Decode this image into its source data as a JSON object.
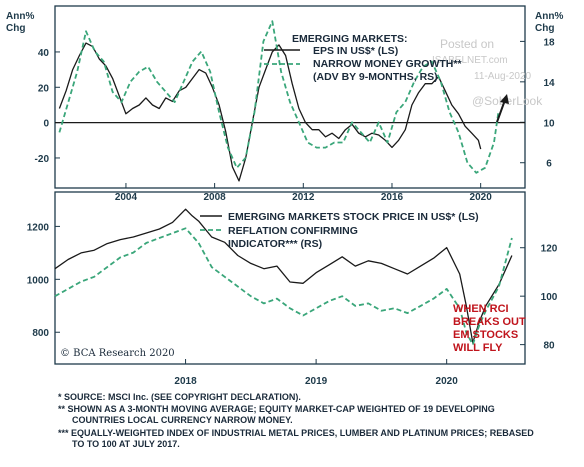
{
  "colors": {
    "black_line": "#1a1a1a",
    "green_dashed": "#3aa67a",
    "red_text": "#c0141c",
    "frame": "#1e3a4a"
  },
  "chart_data": [
    {
      "type": "line",
      "title": "EMERGING MARKETS:",
      "left_unit": [
        "Ann%",
        "Chg"
      ],
      "right_unit": [
        "Ann%",
        "Chg"
      ],
      "left_ticks": [
        "40",
        "20",
        "0",
        "-20"
      ],
      "right_ticks": [
        "18",
        "14",
        "10",
        "6"
      ],
      "x_ticks": [
        "2004",
        "2008",
        "2012",
        "2016",
        "2020"
      ],
      "xlim": [
        2000.8,
        2022.0
      ],
      "ylim_left": [
        -37,
        66
      ],
      "ylim_right": [
        3.5,
        21.5
      ],
      "zero_line": 0,
      "series": [
        {
          "name": "EPS IN US$* (LS)",
          "axis": "left",
          "style": "solid",
          "x": [
            2001.0,
            2001.3,
            2001.6,
            2001.9,
            2002.2,
            2002.5,
            2002.8,
            2003.1,
            2003.4,
            2003.7,
            2004.0,
            2004.3,
            2004.6,
            2004.9,
            2005.2,
            2005.5,
            2005.8,
            2006.1,
            2006.4,
            2006.7,
            2007.0,
            2007.3,
            2007.6,
            2007.9,
            2008.2,
            2008.5,
            2008.8,
            2009.1,
            2009.4,
            2009.7,
            2010.0,
            2010.3,
            2010.6,
            2010.9,
            2011.2,
            2011.5,
            2011.8,
            2012.1,
            2012.4,
            2012.7,
            2013.0,
            2013.3,
            2013.6,
            2013.9,
            2014.2,
            2014.5,
            2014.8,
            2015.1,
            2015.4,
            2015.7,
            2016.0,
            2016.3,
            2016.6,
            2016.9,
            2017.2,
            2017.5,
            2017.8,
            2018.1,
            2018.4,
            2018.7,
            2019.0,
            2019.3,
            2019.6,
            2019.9,
            2020.0
          ],
          "values": [
            8,
            18,
            30,
            38,
            45,
            43,
            36,
            32,
            25,
            15,
            5,
            8,
            10,
            14,
            10,
            8,
            14,
            12,
            18,
            20,
            25,
            30,
            28,
            20,
            10,
            -5,
            -25,
            -33,
            -20,
            0,
            20,
            30,
            40,
            44,
            38,
            22,
            8,
            0,
            -4,
            -4,
            -8,
            -6,
            -9,
            -4,
            -1,
            -6,
            -8,
            -6,
            -7,
            -10,
            -14,
            -10,
            -4,
            10,
            17,
            22,
            22,
            26,
            18,
            10,
            5,
            -2,
            -6,
            -10,
            -15
          ]
        },
        {
          "name": "NARROW MONEY GROWTH** (ADV BY 9-MONTHS, RS)",
          "axis": "right",
          "style": "dashed",
          "x": [
            2001.0,
            2001.4,
            2001.8,
            2002.2,
            2002.6,
            2003.0,
            2003.4,
            2003.8,
            2004.2,
            2004.6,
            2005.0,
            2005.4,
            2005.8,
            2006.2,
            2006.6,
            2007.0,
            2007.4,
            2007.8,
            2008.2,
            2008.6,
            2009.0,
            2009.4,
            2009.8,
            2010.2,
            2010.6,
            2011.0,
            2011.4,
            2011.8,
            2012.2,
            2012.6,
            2013.0,
            2013.4,
            2013.8,
            2014.2,
            2014.6,
            2015.0,
            2015.4,
            2015.8,
            2016.2,
            2016.6,
            2017.0,
            2017.4,
            2017.8,
            2018.2,
            2018.6,
            2019.0,
            2019.4,
            2019.8,
            2020.2,
            2020.6,
            2020.8
          ],
          "values": [
            9,
            12,
            15,
            19,
            17,
            16,
            13,
            12,
            14,
            15,
            15.5,
            14,
            13,
            12,
            14,
            16,
            17,
            15,
            11,
            7.5,
            5.5,
            6.5,
            11,
            18,
            20,
            15,
            12,
            10,
            8,
            7.5,
            7.5,
            8,
            8,
            10,
            9,
            8,
            10,
            8,
            11,
            12,
            14,
            15.5,
            16,
            14,
            11,
            9,
            6,
            5,
            5.5,
            8,
            11
          ]
        }
      ]
    },
    {
      "type": "line",
      "x_ticks": [
        "2018",
        "2019",
        "2020"
      ],
      "xlim": [
        2017.0,
        2020.6
      ],
      "left_ticks": [
        "1200",
        "1000",
        "800"
      ],
      "right_ticks": [
        "120",
        "100",
        "80"
      ],
      "ylim_left": [
        680,
        1330
      ],
      "ylim_right": [
        72,
        143
      ],
      "series": [
        {
          "name": "EMERGING MARKETS STOCK PRICE IN US$* (LS)",
          "axis": "left",
          "style": "solid",
          "x": [
            2017.0,
            2017.1,
            2017.2,
            2017.3,
            2017.4,
            2017.5,
            2017.6,
            2017.7,
            2017.8,
            2017.9,
            2018.0,
            2018.05,
            2018.1,
            2018.2,
            2018.3,
            2018.4,
            2018.5,
            2018.6,
            2018.7,
            2018.8,
            2018.9,
            2019.0,
            2019.1,
            2019.2,
            2019.3,
            2019.4,
            2019.5,
            2019.6,
            2019.7,
            2019.8,
            2019.9,
            2020.0,
            2020.1,
            2020.15,
            2020.2,
            2020.25,
            2020.3,
            2020.4,
            2020.5
          ],
          "values": [
            1040,
            1075,
            1100,
            1110,
            1135,
            1150,
            1160,
            1175,
            1190,
            1215,
            1265,
            1240,
            1220,
            1160,
            1140,
            1090,
            1060,
            1040,
            1050,
            990,
            985,
            1025,
            1055,
            1085,
            1050,
            1070,
            1060,
            1040,
            1020,
            1050,
            1080,
            1120,
            1020,
            900,
            760,
            840,
            900,
            980,
            1090
          ]
        },
        {
          "name": "REFLATION CONFIRMING INDICATOR*** (RS)",
          "axis": "right",
          "style": "dashed",
          "x": [
            2017.0,
            2017.1,
            2017.2,
            2017.3,
            2017.4,
            2017.5,
            2017.6,
            2017.7,
            2017.8,
            2017.9,
            2018.0,
            2018.1,
            2018.2,
            2018.3,
            2018.4,
            2018.5,
            2018.6,
            2018.7,
            2018.8,
            2018.9,
            2019.0,
            2019.1,
            2019.2,
            2019.3,
            2019.4,
            2019.5,
            2019.6,
            2019.7,
            2019.8,
            2019.9,
            2020.0,
            2020.1,
            2020.15,
            2020.2,
            2020.25,
            2020.3,
            2020.4,
            2020.5
          ],
          "values": [
            100,
            103,
            106,
            108,
            112,
            116,
            118,
            122,
            124,
            126,
            128,
            122,
            112,
            108,
            104,
            100,
            97,
            99,
            95,
            92,
            95,
            98,
            100,
            96,
            97,
            94,
            95,
            93,
            96,
            99,
            103,
            95,
            85,
            80,
            88,
            94,
            104,
            124
          ]
        }
      ]
    }
  ],
  "labels": {
    "panel1_title": "EMERGING MARKETS:",
    "legend1_line1": "EPS IN US$* (LS)",
    "legend1_line2a": "NARROW MONEY GROWTH**",
    "legend1_line2b": "(ADV BY 9-MONTHS, RS)",
    "legend2_line1": "EMERGING MARKETS STOCK PRICE IN US$* (LS)",
    "legend2_line2a": "REFLATION CONFIRMING",
    "legend2_line2b": "INDICATOR*** (RS)",
    "annot1": "WHEN RCI",
    "annot2": "BREAKS OUT",
    "annot3": "EM STOCKS",
    "annot4": "WILL FLY",
    "copyright": "© BCA Research 2020",
    "watermark1": "Posted on",
    "watermark2": "ISABELNET.com",
    "watermark3": "11-Aug-2020",
    "watermark4": "@SoberLook"
  },
  "footnotes": [
    "* SOURCE: MSCI Inc. (SEE COPYRIGHT DECLARATION).",
    "** SHOWN AS A 3-MONTH MOVING AVERAGE; EQUITY MARKET-CAP WEIGHTED OF 19 DEVELOPING",
    "COUNTRIES LOCAL CURRENCY NARROW MONEY.",
    "*** EQUALLY-WEIGHTED INDEX OF INDUSTRIAL METAL PRICES, LUMBER AND PLATINUM PRICES; REBASED",
    "TO TO 100 AT JULY 2017."
  ]
}
